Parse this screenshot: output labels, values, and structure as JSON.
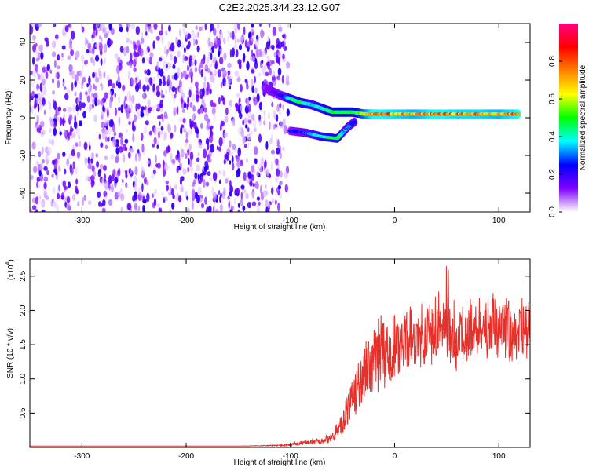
{
  "figure_title": "C2E2.2025.344.23.12.G07",
  "chart_data": [
    {
      "type": "heatmap",
      "title": "C2E2.2025.344.23.12.G07",
      "xlabel": "Height of straight line (km)",
      "ylabel": "Frequency (Hz)",
      "xlim": [
        -350,
        130
      ],
      "ylim": [
        -50,
        50
      ],
      "xticks": [
        -300,
        -200,
        -100,
        0,
        100
      ],
      "yticks": [
        -40,
        -20,
        0,
        20,
        40
      ],
      "colorbar": {
        "label": "Normalized spectral amplitude",
        "range": [
          0,
          1
        ],
        "ticks": [
          0.0,
          0.2,
          0.4,
          0.6,
          0.8
        ],
        "tick_labels": [
          "0.0",
          "0.2",
          "0.4",
          "0.6",
          "0.8"
        ],
        "colormap": [
          "#ffffff",
          "#7f00ff",
          "#0000ff",
          "#00ffff",
          "#00ff00",
          "#ffff00",
          "#ff8000",
          "#ff0000",
          "#ff0080"
        ]
      },
      "noise_region": {
        "x_range": [
          -350,
          -102
        ],
        "y_range": [
          -50,
          50
        ],
        "level_range": [
          0.02,
          0.22
        ]
      },
      "signal_track": [
        {
          "x": -125,
          "y": 16,
          "v": 0.12
        },
        {
          "x": -110,
          "y": 12,
          "v": 0.2
        },
        {
          "x": -100,
          "y": 10,
          "v": 0.45
        },
        {
          "x": -90,
          "y": 8,
          "v": 0.5
        },
        {
          "x": -80,
          "y": 7,
          "v": 0.4
        },
        {
          "x": -70,
          "y": 5,
          "v": 0.45
        },
        {
          "x": -60,
          "y": 3,
          "v": 0.5
        },
        {
          "x": -50,
          "y": 3,
          "v": 0.55
        },
        {
          "x": -40,
          "y": 3,
          "v": 0.5
        },
        {
          "x": -30,
          "y": 2,
          "v": 0.65
        },
        {
          "x": -20,
          "y": 2,
          "v": 0.85
        },
        {
          "x": 0,
          "y": 2,
          "v": 0.8
        },
        {
          "x": 20,
          "y": 2,
          "v": 0.75
        },
        {
          "x": 40,
          "y": 2,
          "v": 0.85
        },
        {
          "x": 60,
          "y": 2,
          "v": 0.8
        },
        {
          "x": 80,
          "y": 2,
          "v": 0.8
        },
        {
          "x": 100,
          "y": 2,
          "v": 0.75
        },
        {
          "x": 120,
          "y": 2,
          "v": 0.85
        }
      ],
      "secondary_track": [
        {
          "x": -100,
          "y": -7,
          "v": 0.25
        },
        {
          "x": -85,
          "y": -8,
          "v": 0.3
        },
        {
          "x": -70,
          "y": -10,
          "v": 0.45
        },
        {
          "x": -55,
          "y": -11,
          "v": 0.5
        },
        {
          "x": -45,
          "y": -5,
          "v": 0.35
        },
        {
          "x": -38,
          "y": -2,
          "v": 0.3
        }
      ]
    },
    {
      "type": "line",
      "xlabel": "Height of straight line (km)",
      "ylabel": "SNR (10 * v/v)",
      "y_scale_label": "(x10",
      "y_scale_exponent": "4",
      "xlim": [
        -350,
        130
      ],
      "ylim": [
        0,
        2.75
      ],
      "xticks": [
        -300,
        -200,
        -100,
        0,
        100
      ],
      "yticks": [
        0.5,
        1.0,
        1.5,
        2.0,
        2.5
      ],
      "ytick_labels": [
        "0.5",
        "1.0",
        "1.5",
        "2.0",
        "2.5"
      ],
      "series": [
        {
          "name": "SNR",
          "color": "#e8302a",
          "x": [
            -350,
            -300,
            -250,
            -200,
            -150,
            -110,
            -100,
            -90,
            -80,
            -70,
            -60,
            -50,
            -45,
            -40,
            -35,
            -30,
            -25,
            -20,
            -15,
            -10,
            -5,
            0,
            10,
            20,
            30,
            40,
            50,
            60,
            70,
            80,
            90,
            100,
            110,
            120,
            130
          ],
          "y": [
            0.02,
            0.02,
            0.02,
            0.02,
            0.02,
            0.03,
            0.04,
            0.06,
            0.08,
            0.1,
            0.15,
            0.35,
            0.55,
            0.75,
            0.9,
            1.1,
            1.25,
            1.3,
            1.35,
            1.4,
            1.3,
            1.45,
            1.6,
            1.55,
            1.7,
            1.75,
            1.8,
            1.65,
            1.7,
            1.75,
            1.75,
            1.7,
            1.65,
            1.7,
            1.75
          ],
          "jitter": [
            0,
            0,
            0,
            0,
            0,
            0.01,
            0.02,
            0.03,
            0.04,
            0.05,
            0.08,
            0.2,
            0.3,
            0.35,
            0.4,
            0.5,
            0.5,
            0.55,
            0.55,
            0.6,
            0.5,
            0.45,
            0.45,
            0.45,
            0.5,
            0.5,
            0.5,
            0.5,
            0.45,
            0.45,
            0.45,
            0.45,
            0.45,
            0.45,
            0.45
          ],
          "peak_max": 2.7
        }
      ]
    }
  ]
}
